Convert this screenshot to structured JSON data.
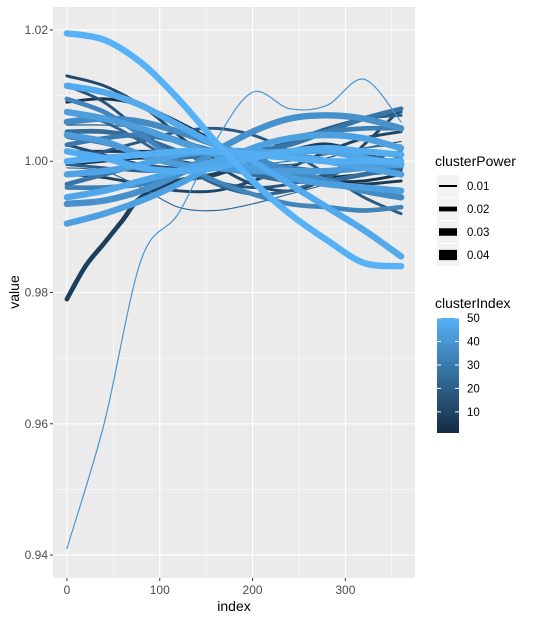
{
  "chart_data": {
    "type": "line",
    "title": "",
    "xlabel": "index",
    "ylabel": "value",
    "xlim": [
      -15,
      375
    ],
    "ylim": [
      0.9365,
      1.0235
    ],
    "x_ticks": [
      0,
      100,
      200,
      300
    ],
    "x_tick_labels": [
      "0",
      "100",
      "200",
      "300"
    ],
    "y_ticks": [
      0.94,
      0.96,
      0.98,
      1.0,
      1.02
    ],
    "y_tick_labels": [
      "0.94",
      "0.96",
      "0.98",
      "1.00",
      "1.02"
    ],
    "grid": true,
    "panel_background": "#ebebeb",
    "gridline_color": "#ffffff",
    "x_range": [
      0,
      360
    ],
    "legends": {
      "power": {
        "title": "clusterPower",
        "entries": [
          "0.01",
          "0.02",
          "0.03",
          "0.04"
        ],
        "key_color": "#000000",
        "placement": "right"
      },
      "index": {
        "title": "clusterIndex",
        "tick_labels": [
          "10",
          "20",
          "30",
          "40",
          "50"
        ],
        "tick_values": [
          10,
          20,
          30,
          40,
          50
        ],
        "range": [
          1,
          50
        ],
        "low_color": "#132b43",
        "high_color": "#56b1f7",
        "placement": "right"
      }
    },
    "series": [
      {
        "cluster_index": 40,
        "power": 0.01,
        "values_at_x": {
          "x": [
            0,
            40,
            80,
            120,
            160,
            200,
            240,
            280,
            320,
            360
          ],
          "y": [
            0.941,
            0.96,
            0.985,
            0.992,
            1.003,
            1.0105,
            1.008,
            1.0085,
            1.0125,
            1.006
          ]
        }
      },
      {
        "cluster_index": 8,
        "power": 0.03,
        "values_at_x": {
          "x": [
            0,
            20,
            40,
            60,
            80,
            120,
            160,
            200,
            240,
            280,
            320,
            360
          ],
          "y": [
            0.979,
            0.984,
            0.9875,
            0.991,
            0.9945,
            0.997,
            0.998,
            1.0,
            1.0015,
            1.0025,
            1.001,
            0.9995
          ]
        }
      },
      {
        "cluster_index": 50,
        "power": 0.04,
        "values_at_x": {
          "x": [
            0,
            40,
            80,
            120,
            160,
            200,
            240,
            280,
            320,
            360
          ],
          "y": [
            1.0195,
            1.0185,
            1.015,
            1.0095,
            1.003,
            0.997,
            0.992,
            0.988,
            0.9845,
            0.984
          ]
        }
      },
      {
        "cluster_index": 47,
        "power": 0.04,
        "values_at_x": {
          "x": [
            0,
            40,
            80,
            120,
            160,
            200,
            240,
            280,
            320,
            360
          ],
          "y": [
            1.0115,
            1.0105,
            1.0085,
            1.0055,
            1.0025,
            1.0,
            0.9965,
            0.993,
            0.9895,
            0.9855
          ]
        }
      },
      {
        "cluster_index": 44,
        "power": 0.04,
        "values_at_x": {
          "x": [
            0,
            40,
            80,
            120,
            160,
            200,
            240,
            280,
            320,
            360
          ],
          "y": [
            0.9905,
            0.992,
            0.994,
            0.9965,
            0.9995,
            1.002,
            1.0035,
            1.004,
            1.0035,
            1.002
          ]
        }
      },
      {
        "cluster_index": 48,
        "power": 0.04,
        "values_at_x": {
          "x": [
            0,
            40,
            80,
            120,
            160,
            200,
            240,
            280,
            320,
            360
          ],
          "y": [
            1.0015,
            1.0005,
            0.999,
            0.9985,
            0.999,
            1.0005,
            1.0015,
            1.002,
            1.0015,
            1.001
          ]
        }
      },
      {
        "cluster_index": 45,
        "power": 0.04,
        "values_at_x": {
          "x": [
            0,
            40,
            80,
            120,
            160,
            200,
            240,
            280,
            320,
            360
          ],
          "y": [
            0.998,
            0.9985,
            0.9995,
            1.001,
            1.0015,
            1.0015,
            1.001,
            1.0,
            0.999,
            0.998
          ]
        }
      },
      {
        "cluster_index": 42,
        "power": 0.04,
        "values_at_x": {
          "x": [
            0,
            40,
            80,
            120,
            160,
            200,
            240,
            280,
            320,
            360
          ],
          "y": [
            1.004,
            1.003,
            1.001,
            0.9995,
            0.999,
            0.9985,
            0.9985,
            0.9985,
            0.999,
            0.9995
          ]
        }
      },
      {
        "cluster_index": 49,
        "power": 0.04,
        "values_at_x": {
          "x": [
            0,
            40,
            80,
            120,
            160,
            200,
            240,
            280,
            320,
            360
          ],
          "y": [
            1.0,
            1.0005,
            1.001,
            1.0015,
            1.0015,
            1.001,
            1.0005,
            1.0,
            1.0,
            1.0
          ]
        }
      },
      {
        "cluster_index": 46,
        "power": 0.04,
        "values_at_x": {
          "x": [
            0,
            40,
            80,
            120,
            160,
            200,
            240,
            280,
            320,
            360
          ],
          "y": [
            0.9945,
            0.9955,
            0.997,
            0.9985,
            1.0,
            1.001,
            1.0015,
            1.0015,
            1.0005,
            0.9995
          ]
        }
      },
      {
        "cluster_index": 43,
        "power": 0.04,
        "values_at_x": {
          "x": [
            0,
            40,
            80,
            120,
            160,
            200,
            240,
            280,
            320,
            360
          ],
          "y": [
            1.0075,
            1.0065,
            1.005,
            1.003,
            1.001,
            0.999,
            0.9975,
            0.9965,
            0.996,
            0.9955
          ]
        }
      },
      {
        "cluster_index": 38,
        "power": 0.04,
        "values_at_x": {
          "x": [
            0,
            40,
            80,
            120,
            160,
            200,
            240,
            280,
            320,
            360
          ],
          "y": [
            0.9935,
            0.994,
            0.9955,
            0.998,
            1.0015,
            1.0045,
            1.0065,
            1.007,
            1.0065,
            1.005
          ]
        }
      },
      {
        "cluster_index": 36,
        "power": 0.04,
        "values_at_x": {
          "x": [
            0,
            40,
            80,
            120,
            160,
            200,
            240,
            280,
            320,
            360
          ],
          "y": [
            1.006,
            1.0065,
            1.006,
            1.0045,
            1.0025,
            1.0005,
            0.9985,
            0.997,
            0.9955,
            0.9945
          ]
        }
      },
      {
        "cluster_index": 34,
        "power": 0.03,
        "values_at_x": {
          "x": [
            0,
            40,
            80,
            120,
            160,
            200,
            240,
            280,
            320,
            360
          ],
          "y": [
            1.0095,
            1.0075,
            1.004,
            1.0,
            0.997,
            0.995,
            0.9935,
            0.993,
            0.9925,
            0.993
          ]
        }
      },
      {
        "cluster_index": 32,
        "power": 0.03,
        "values_at_x": {
          "x": [
            0,
            40,
            80,
            120,
            160,
            200,
            240,
            280,
            320,
            360
          ],
          "y": [
            0.996,
            0.996,
            0.9965,
            0.998,
            1.0,
            1.002,
            1.0035,
            1.0045,
            1.005,
            1.005
          ]
        }
      },
      {
        "cluster_index": 30,
        "power": 0.03,
        "values_at_x": {
          "x": [
            0,
            40,
            80,
            120,
            160,
            200,
            240,
            280,
            320,
            360
          ],
          "y": [
            1.0025,
            1.0035,
            1.004,
            1.003,
            1.0015,
            1.0,
            0.999,
            0.9985,
            0.999,
            1.0
          ]
        }
      },
      {
        "cluster_index": 28,
        "power": 0.03,
        "values_at_x": {
          "x": [
            0,
            40,
            80,
            120,
            160,
            200,
            240,
            280,
            320,
            360
          ],
          "y": [
            0.9965,
            0.998,
            0.9995,
            1.0005,
            1.001,
            1.0015,
            1.0025,
            1.0045,
            1.0065,
            1.008
          ]
        }
      },
      {
        "cluster_index": 25,
        "power": 0.03,
        "values_at_x": {
          "x": [
            0,
            40,
            80,
            120,
            160,
            200,
            240,
            280,
            320,
            360
          ],
          "y": [
            1.0045,
            1.0045,
            1.0035,
            1.0015,
            0.9995,
            0.998,
            0.997,
            0.997,
            0.998,
            0.999
          ]
        }
      },
      {
        "cluster_index": 22,
        "power": 0.02,
        "values_at_x": {
          "x": [
            0,
            40,
            80,
            120,
            160,
            200,
            240,
            280,
            320,
            360
          ],
          "y": [
            1.0075,
            1.006,
            1.003,
            0.9995,
            0.9965,
            0.995,
            0.9955,
            0.9975,
            1.0,
            1.0015
          ]
        }
      },
      {
        "cluster_index": 20,
        "power": 0.02,
        "values_at_x": {
          "x": [
            0,
            40,
            80,
            120,
            160,
            200,
            240,
            280,
            320,
            360
          ],
          "y": [
            0.9995,
            0.999,
            0.9985,
            0.9985,
            0.9995,
            1.001,
            1.003,
            1.005,
            1.0065,
            1.007
          ]
        }
      },
      {
        "cluster_index": 18,
        "power": 0.02,
        "values_at_x": {
          "x": [
            0,
            40,
            80,
            120,
            160,
            200,
            240,
            280,
            320,
            360
          ],
          "y": [
            1.0,
            1.0015,
            1.003,
            1.0045,
            1.005,
            1.004,
            1.0015,
            0.998,
            0.9945,
            0.992
          ]
        }
      },
      {
        "cluster_index": 16,
        "power": 0.02,
        "values_at_x": {
          "x": [
            0,
            40,
            80,
            120,
            160,
            200,
            240,
            280,
            320,
            360
          ],
          "y": [
            1.0115,
            1.009,
            1.0045,
            1.0,
            0.997,
            0.996,
            0.9965,
            0.998,
            0.9995,
            1.0005
          ]
        }
      },
      {
        "cluster_index": 14,
        "power": 0.02,
        "values_at_x": {
          "x": [
            0,
            40,
            80,
            120,
            160,
            200,
            240,
            280,
            320,
            360
          ],
          "y": [
            1.0025,
            1.001,
            0.9995,
            0.999,
            0.9995,
            1.001,
            1.003,
            1.005,
            1.0065,
            1.0075
          ]
        }
      },
      {
        "cluster_index": 12,
        "power": 0.02,
        "values_at_x": {
          "x": [
            0,
            40,
            80,
            120,
            160,
            200,
            240,
            280,
            320,
            360
          ],
          "y": [
            1.013,
            1.0115,
            1.0085,
            1.004,
            0.9995,
            0.9965,
            0.9955,
            0.9975,
            1.0025,
            1.008
          ]
        }
      },
      {
        "cluster_index": 10,
        "power": 0.02,
        "values_at_x": {
          "x": [
            0,
            40,
            80,
            120,
            160,
            200,
            240,
            280,
            320,
            360
          ],
          "y": [
            0.998,
            0.9975,
            0.9965,
            0.9955,
            0.9955,
            0.997,
            0.999,
            1.0015,
            1.0035,
            1.0045
          ]
        }
      },
      {
        "cluster_index": 6,
        "power": 0.02,
        "values_at_x": {
          "x": [
            0,
            40,
            80,
            120,
            160,
            200,
            240,
            280,
            320,
            360
          ],
          "y": [
            1.0015,
            1.0015,
            1.0015,
            1.0015,
            1.0005,
            0.999,
            0.9975,
            0.9965,
            0.9965,
            0.997
          ]
        }
      },
      {
        "cluster_index": 4,
        "power": 0.02,
        "values_at_x": {
          "x": [
            0,
            40,
            80,
            120,
            160,
            200,
            240,
            280,
            320,
            360
          ],
          "y": [
            1.009,
            1.0095,
            1.0085,
            1.006,
            1.003,
            1.0,
            0.998,
            0.997,
            0.997,
            0.998
          ]
        }
      },
      {
        "cluster_index": 2,
        "power": 0.02,
        "values_at_x": {
          "x": [
            0,
            40,
            80,
            120,
            160,
            200,
            240,
            280,
            320,
            360
          ],
          "y": [
            0.9995,
            1.0,
            1.0005,
            1.0,
            0.999,
            0.998,
            0.9975,
            0.9975,
            0.998,
            0.9985
          ]
        }
      },
      {
        "cluster_index": 24,
        "power": 0.01,
        "values_at_x": {
          "x": [
            0,
            40,
            80,
            120,
            160,
            200,
            240,
            280,
            320,
            360
          ],
          "y": [
            0.999,
            0.9985,
            0.996,
            0.993,
            0.9925,
            0.9935,
            0.995,
            0.9965,
            0.998,
            0.9995
          ]
        }
      },
      {
        "cluster_index": 19,
        "power": 0.01,
        "values_at_x": {
          "x": [
            0,
            40,
            80,
            120,
            160,
            200,
            240,
            280,
            320,
            360
          ],
          "y": [
            1.0055,
            1.0055,
            1.005,
            1.0035,
            1.0015,
            1.0,
            0.9995,
            1.0005,
            1.002,
            1.003
          ]
        }
      },
      {
        "cluster_index": 27,
        "power": 0.01,
        "values_at_x": {
          "x": [
            0,
            40,
            80,
            120,
            160,
            200,
            240,
            280,
            320,
            360
          ],
          "y": [
            1.0035,
            1.0025,
            1.001,
            1.0,
            0.9995,
            0.9995,
            1.0,
            1.001,
            1.002,
            1.0025
          ]
        }
      }
    ]
  }
}
